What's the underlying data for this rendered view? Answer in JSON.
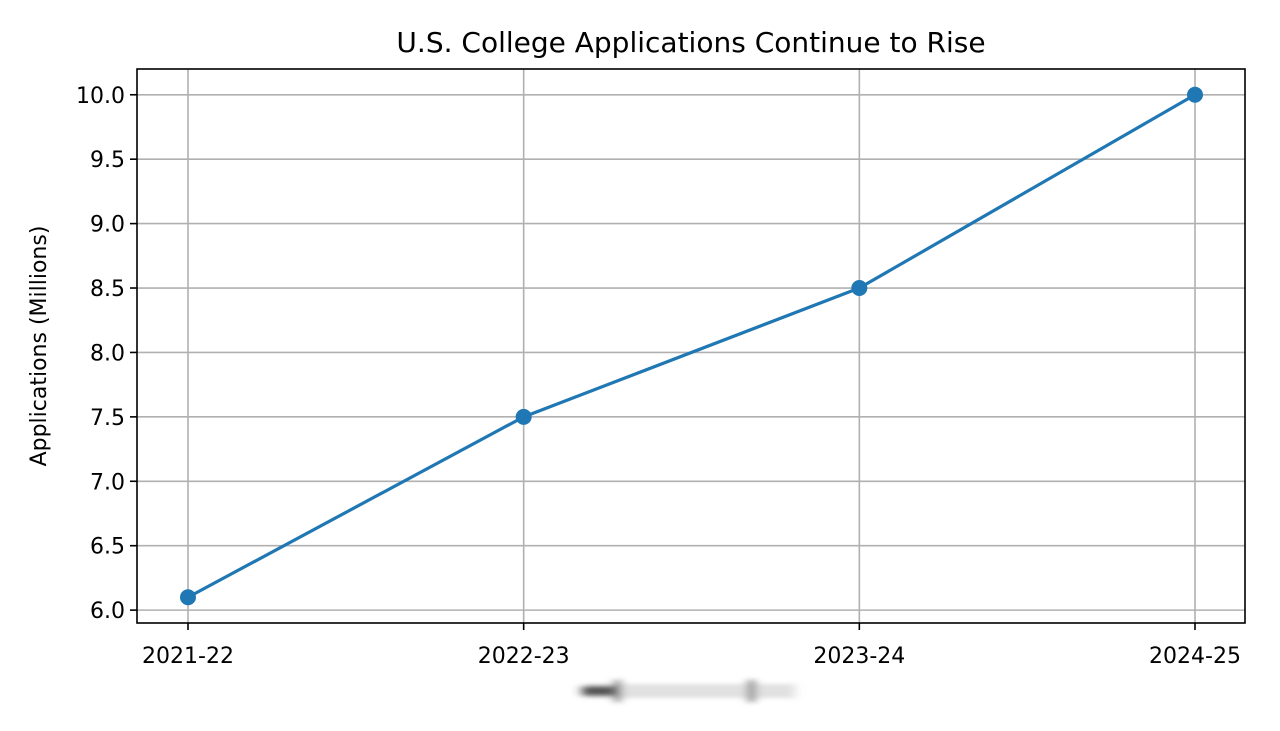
{
  "chart_data": {
    "type": "line",
    "title": "U.S. College Applications Continue to Rise",
    "xlabel": "",
    "ylabel": "Applications (Millions)",
    "categories": [
      "2021-22",
      "2022-23",
      "2023-24",
      "2024-25"
    ],
    "series": [
      {
        "values": [
          6.1,
          7.5,
          8.5,
          10.0
        ]
      }
    ],
    "ylim": [
      5.9,
      10.2
    ],
    "yticks": [
      "6.0",
      "6.5",
      "7.0",
      "7.5",
      "8.0",
      "8.5",
      "9.0",
      "9.5",
      "10.0"
    ],
    "grid": true,
    "markers": true,
    "colors": {
      "series": "#1f77b4",
      "grid": "#b0b0b0",
      "axes": "#000000"
    }
  }
}
